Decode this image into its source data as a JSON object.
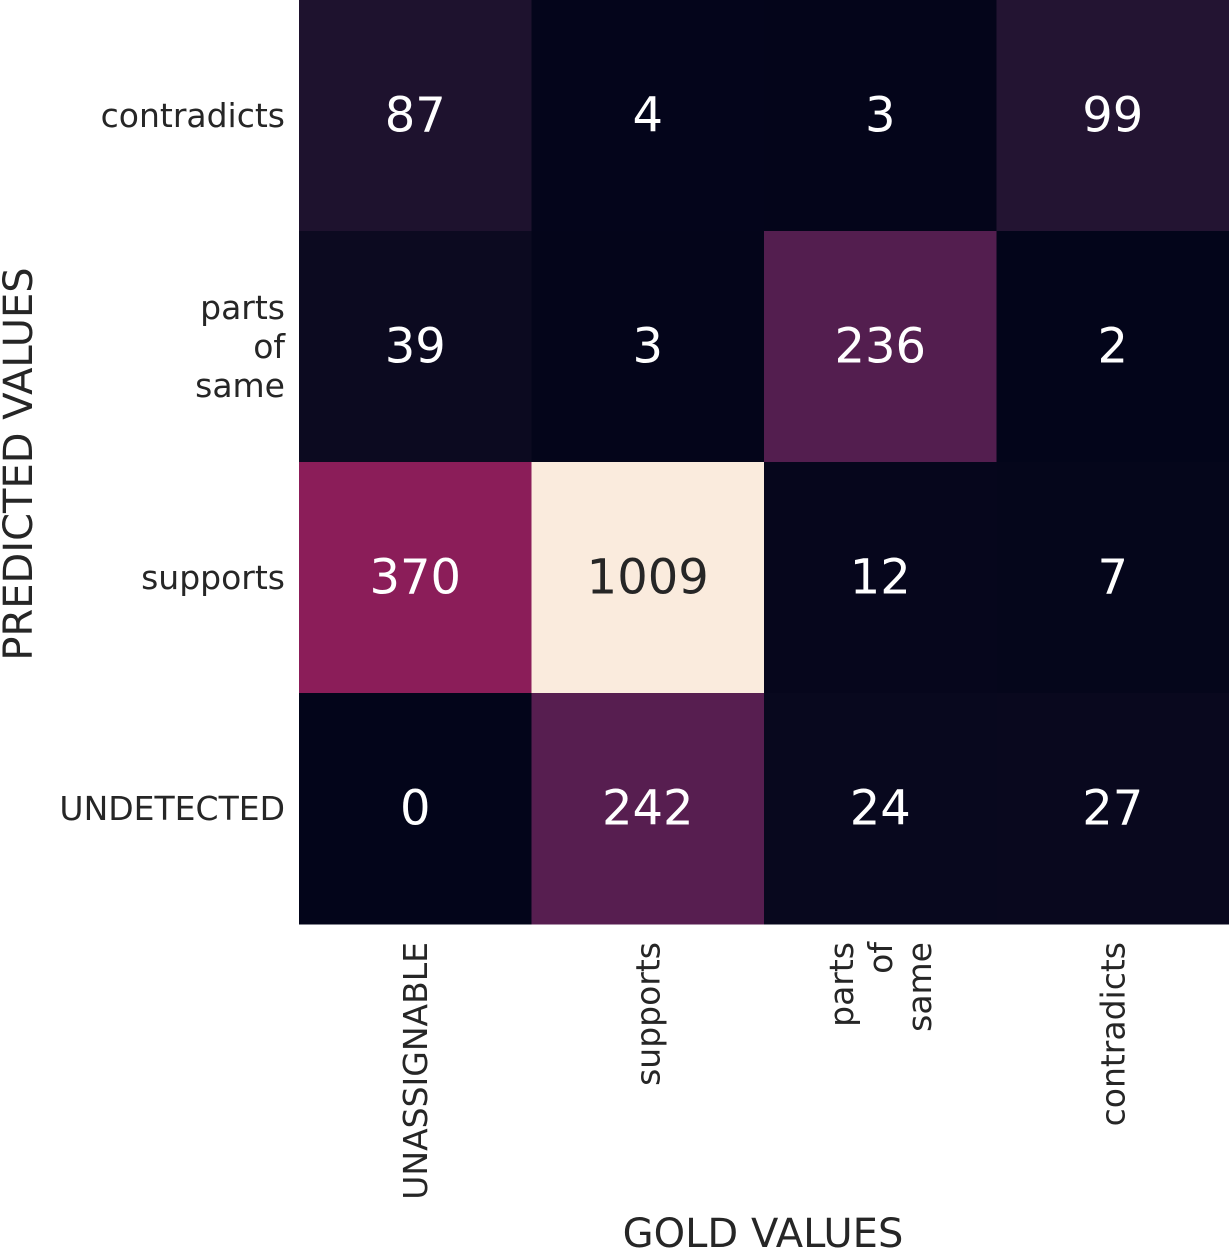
{
  "chart_data": {
    "type": "heatmap",
    "title": "",
    "xlabel": "GOLD VALUES",
    "ylabel": "PREDICTED VALUES",
    "x_categories": [
      [
        "UNASSIGNABLE"
      ],
      [
        "supports"
      ],
      [
        "parts",
        "of",
        "same"
      ],
      [
        "contradicts"
      ]
    ],
    "y_categories": [
      [
        "contradicts"
      ],
      [
        "parts",
        "of",
        "same"
      ],
      [
        "supports"
      ],
      [
        "UNDETECTED"
      ]
    ],
    "values": [
      [
        87,
        4,
        3,
        99
      ],
      [
        39,
        3,
        236,
        2
      ],
      [
        370,
        1009,
        12,
        7
      ],
      [
        0,
        242,
        24,
        27
      ]
    ],
    "value_range": [
      0,
      1009
    ],
    "colormap": "rocket",
    "colorbar": false,
    "annotations": true
  }
}
